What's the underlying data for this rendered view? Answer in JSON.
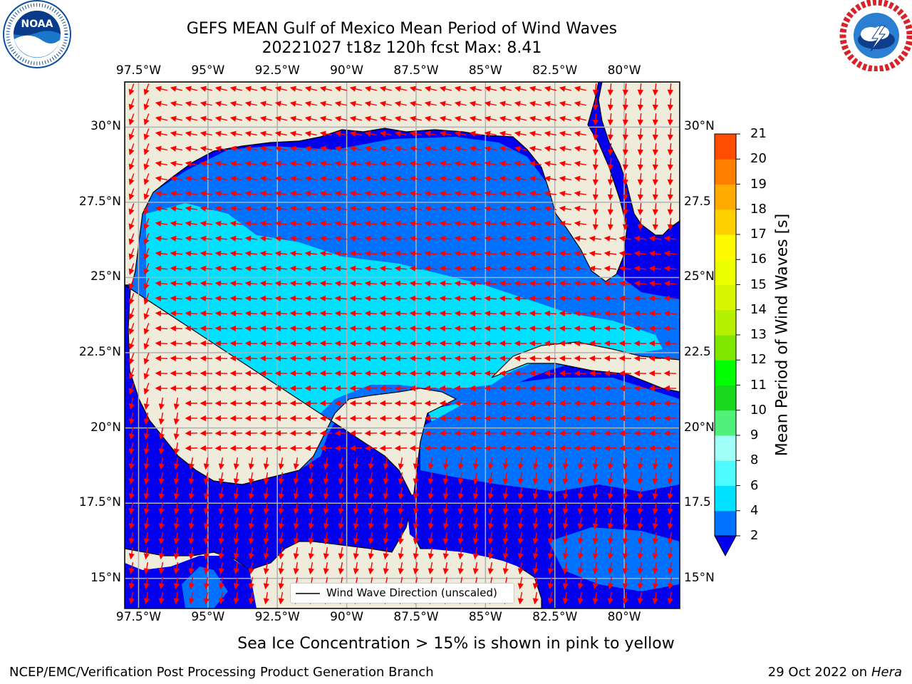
{
  "header": {
    "title_line1": "GEFS MEAN Gulf of Mexico Mean Period of Wind Waves",
    "title_line2": "20221027 t18z 120h fcst   Max: 8.41"
  },
  "logos": {
    "left": {
      "name": "NOAA",
      "ring_text": "NATIONAL OCEANIC AND ATMOSPHERIC ADMINISTRATION · U.S. DEPARTMENT OF COMMERCE",
      "color": "#0a4fa0"
    },
    "right": {
      "name": "NATIONAL WEATHER SERVICE",
      "color": "#d8232a"
    }
  },
  "map": {
    "x_ticks": [
      "97.5°W",
      "95°W",
      "92.5°W",
      "90°W",
      "87.5°W",
      "85°W",
      "82.5°W",
      "80°W"
    ],
    "y_ticks_left": [
      "30°N",
      "27.5°N",
      "25°N",
      "22.5°N",
      "20°N",
      "17.5°N",
      "15°N"
    ],
    "y_ticks_right": [
      "30°N",
      "27.5",
      "25°N",
      "22.5",
      "20°N",
      "17.5",
      "15°N"
    ],
    "lon_range": [
      -98,
      -78
    ],
    "lat_range": [
      14,
      31.5
    ],
    "land_color": "#efecdc",
    "grid": true,
    "arrow_color": "#ff0000",
    "legend_label": "Wind Wave Direction (unscaled)"
  },
  "colorbar": {
    "label": "Mean Period of Wind Waves [s]",
    "ticks": [
      "2",
      "4",
      "6",
      "8",
      "9",
      "10",
      "11",
      "12",
      "13",
      "14",
      "15",
      "16",
      "17",
      "18",
      "19",
      "20",
      "21"
    ],
    "colors": [
      "#0072ff",
      "#00e1ff",
      "#4dfaff",
      "#a0fff8",
      "#50f07a",
      "#18d81e",
      "#00ff00",
      "#7fe600",
      "#b4f000",
      "#d7f500",
      "#ebff00",
      "#fffa00",
      "#ffd000",
      "#ffaa00",
      "#ff7e00",
      "#ff4d00",
      "#ff1a00"
    ],
    "extend_color": "#0000ee",
    "range": [
      2,
      21
    ]
  },
  "footer": {
    "note": "Sea Ice Concentration > 15% is shown in pink to yellow",
    "left": "NCEP/EMC/Verification Post Processing Product Generation Branch",
    "right_prefix": "29 Oct 2022 on ",
    "right_italic": "Hera"
  }
}
